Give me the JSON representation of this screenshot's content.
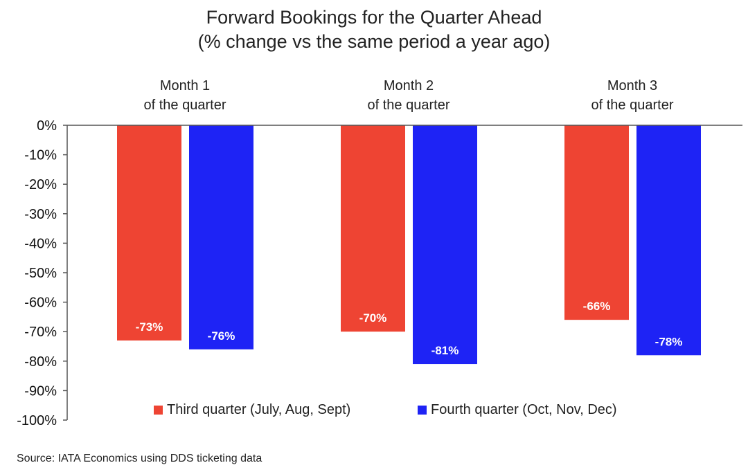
{
  "chart_data": {
    "type": "bar",
    "title": "Forward Bookings for the Quarter Ahead",
    "subtitle": "(% change vs the same period a year ago)",
    "categories": [
      "Month 1",
      "Month 2",
      "Month 3"
    ],
    "category_sublabels": [
      "of the quarter",
      "of the quarter",
      "of the quarter"
    ],
    "series": [
      {
        "name": "Third quarter (July, Aug, Sept)",
        "values": [
          -73,
          -70,
          -66
        ],
        "labels": [
          "-73%",
          "-70%",
          "-66%"
        ],
        "color": "#EE4433"
      },
      {
        "name": "Fourth quarter (Oct, Nov, Dec)",
        "values": [
          -76,
          -81,
          -78
        ],
        "labels": [
          "-76%",
          "-81%",
          "-78%"
        ],
        "color": "#1E23F5"
      }
    ],
    "yticks": [
      "0%",
      "-10%",
      "-20%",
      "-30%",
      "-40%",
      "-50%",
      "-60%",
      "-70%",
      "-80%",
      "-90%",
      "-100%"
    ],
    "ylim": [
      -100,
      0
    ],
    "grid": false,
    "legend_position": "bottom-center"
  },
  "source": "Source: IATA Economics using DDS ticketing data"
}
